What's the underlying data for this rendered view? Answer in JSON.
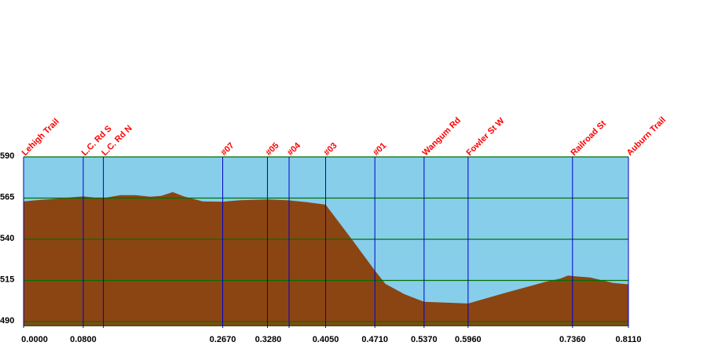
{
  "chart_data": {
    "type": "area",
    "title": "",
    "xlabel": "",
    "ylabel": "",
    "xlim": [
      0,
      0.811
    ],
    "ylim": [
      490,
      590
    ],
    "y_ticks": [
      {
        "value": 490,
        "label": "490"
      },
      {
        "value": 515,
        "label": "515"
      },
      {
        "value": 540,
        "label": "540"
      },
      {
        "value": 565,
        "label": "565"
      },
      {
        "value": 590,
        "label": "590"
      }
    ],
    "x_ticks": [
      {
        "value": 0.0,
        "label": "0.0000"
      },
      {
        "value": 0.08,
        "label": "0.0800"
      },
      {
        "value": 0.267,
        "label": "0.2670"
      },
      {
        "value": 0.328,
        "label": "0.3280"
      },
      {
        "value": 0.405,
        "label": "0.4050"
      },
      {
        "value": 0.471,
        "label": "0.4710"
      },
      {
        "value": 0.537,
        "label": "0.5370"
      },
      {
        "value": 0.596,
        "label": "0.5960"
      },
      {
        "value": 0.736,
        "label": "0.7360"
      },
      {
        "value": 0.811,
        "label": "0.8110"
      }
    ],
    "markers": [
      {
        "x": 0.0,
        "label": "Lehigh Trail"
      },
      {
        "x": 0.08,
        "label": "L.C. Rd S"
      },
      {
        "x": 0.107,
        "label": "L.C. Rd N"
      },
      {
        "x": 0.267,
        "label": "#07"
      },
      {
        "x": 0.327,
        "label": "#05"
      },
      {
        "x": 0.356,
        "label": "#04"
      },
      {
        "x": 0.405,
        "label": "#03"
      },
      {
        "x": 0.471,
        "label": "#01"
      },
      {
        "x": 0.537,
        "label": "Wangum Rd"
      },
      {
        "x": 0.596,
        "label": "Fowler St W"
      },
      {
        "x": 0.736,
        "label": "Railroad St"
      },
      {
        "x": 0.811,
        "label": "Auburn Trail"
      }
    ],
    "series": [
      {
        "x": [
          0.0,
          0.02,
          0.04,
          0.06,
          0.08,
          0.09,
          0.105,
          0.13,
          0.15,
          0.17,
          0.185,
          0.2,
          0.215,
          0.24,
          0.267,
          0.29,
          0.327,
          0.356,
          0.38,
          0.405,
          0.44,
          0.471,
          0.485,
          0.51,
          0.537,
          0.57,
          0.596,
          0.65,
          0.7,
          0.72,
          0.73,
          0.74,
          0.76,
          0.79,
          0.811
        ],
        "y": [
          563,
          563.8,
          564.5,
          565.3,
          566,
          565.5,
          564.8,
          566.8,
          566.8,
          565.8,
          566.4,
          568.6,
          566,
          563,
          562.8,
          563.7,
          564.2,
          563.6,
          562.5,
          561,
          540,
          521,
          513,
          506.8,
          502,
          501.5,
          501,
          508,
          514.2,
          516.2,
          518,
          517.5,
          516.8,
          513.5,
          512.6
        ]
      }
    ],
    "grid": true,
    "colors": {
      "sky": "#87ceeb",
      "terrain": "#8b4513",
      "gridline": "#007000",
      "marker_line": "#0000cc",
      "marker_text": "#ff0000",
      "tick_text": "#000000"
    }
  }
}
